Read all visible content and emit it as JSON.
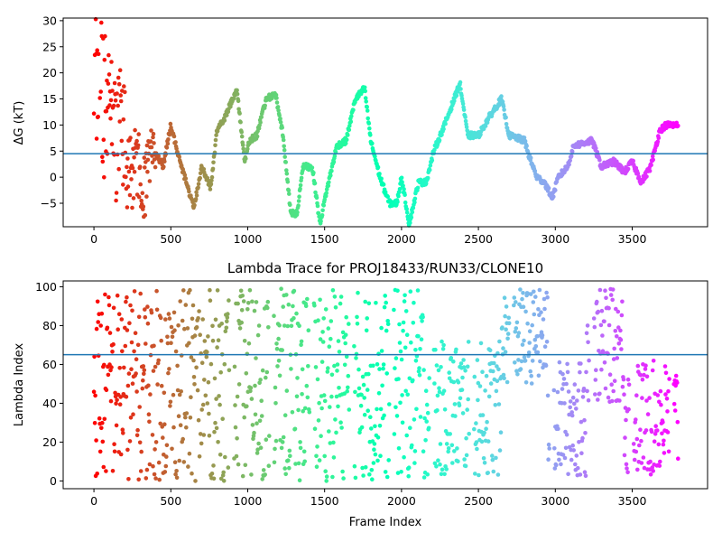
{
  "chart_data": [
    {
      "type": "scatter",
      "title": "",
      "xlabel": "",
      "ylabel": "ΔG (kT)",
      "xlim": [
        -200,
        3990
      ],
      "ylim": [
        -9.5,
        30.5
      ],
      "xticks": [
        "0",
        "500",
        "1000",
        "1500",
        "2000",
        "2500",
        "3000",
        "3500"
      ],
      "yticks": [
        "−5",
        "0",
        "5",
        "10",
        "15",
        "20",
        "25",
        "30"
      ],
      "hline": 4.5,
      "hline_color": "#1f77b4",
      "colormap": "rainbow (red at frame 0 → violet at last frame)",
      "n_frames": 3800,
      "control_points": [
        [
          0,
          28
        ],
        [
          20,
          20
        ],
        [
          40,
          28
        ],
        [
          60,
          15
        ],
        [
          80,
          10
        ],
        [
          100,
          18
        ],
        [
          140,
          5
        ],
        [
          180,
          12
        ],
        [
          220,
          0
        ],
        [
          280,
          4
        ],
        [
          330,
          -2
        ],
        [
          380,
          6
        ],
        [
          450,
          2
        ],
        [
          500,
          10
        ],
        [
          560,
          3
        ],
        [
          620,
          -3
        ],
        [
          650,
          -6
        ],
        [
          700,
          2
        ],
        [
          760,
          -2
        ],
        [
          800,
          9
        ],
        [
          860,
          12
        ],
        [
          930,
          17
        ],
        [
          980,
          3
        ],
        [
          1010,
          7
        ],
        [
          1060,
          8
        ],
        [
          1120,
          15
        ],
        [
          1180,
          16
        ],
        [
          1230,
          8
        ],
        [
          1280,
          -7
        ],
        [
          1320,
          -7
        ],
        [
          1360,
          2
        ],
        [
          1420,
          2
        ],
        [
          1470,
          -9
        ],
        [
          1510,
          -3
        ],
        [
          1580,
          6
        ],
        [
          1640,
          7
        ],
        [
          1700,
          15
        ],
        [
          1760,
          17
        ],
        [
          1800,
          7
        ],
        [
          1860,
          0
        ],
        [
          1920,
          -5
        ],
        [
          1970,
          -5
        ],
        [
          2000,
          0
        ],
        [
          2050,
          -9
        ],
        [
          2110,
          -1
        ],
        [
          2160,
          -1
        ],
        [
          2210,
          5
        ],
        [
          2280,
          10
        ],
        [
          2330,
          14
        ],
        [
          2380,
          18
        ],
        [
          2430,
          8
        ],
        [
          2500,
          8
        ],
        [
          2580,
          12
        ],
        [
          2650,
          15
        ],
        [
          2700,
          8
        ],
        [
          2800,
          7
        ],
        [
          2830,
          4
        ],
        [
          2880,
          0
        ],
        [
          2930,
          -1
        ],
        [
          2980,
          -4
        ],
        [
          3020,
          0
        ],
        [
          3080,
          2
        ],
        [
          3120,
          6
        ],
        [
          3240,
          7
        ],
        [
          3300,
          2
        ],
        [
          3380,
          3
        ],
        [
          3450,
          1
        ],
        [
          3500,
          3
        ],
        [
          3560,
          -1
        ],
        [
          3620,
          2
        ],
        [
          3680,
          9
        ],
        [
          3720,
          10
        ],
        [
          3800,
          10
        ]
      ]
    },
    {
      "type": "scatter",
      "title": "Lambda Trace for PROJ18433/RUN33/CLONE10",
      "xlabel": "Frame Index",
      "ylabel": "Lambda Index",
      "xlim": [
        -200,
        3990
      ],
      "ylim": [
        -4,
        103
      ],
      "xticks": [
        "0",
        "500",
        "1000",
        "1500",
        "2000",
        "2500",
        "3000",
        "3500"
      ],
      "yticks": [
        "0",
        "20",
        "40",
        "60",
        "80",
        "100"
      ],
      "hline": 65,
      "hline_color": "#1f77b4",
      "colormap": "rainbow (red at frame 0 → violet at last frame)",
      "n_frames": 3800,
      "value_range": [
        0,
        99
      ]
    }
  ]
}
